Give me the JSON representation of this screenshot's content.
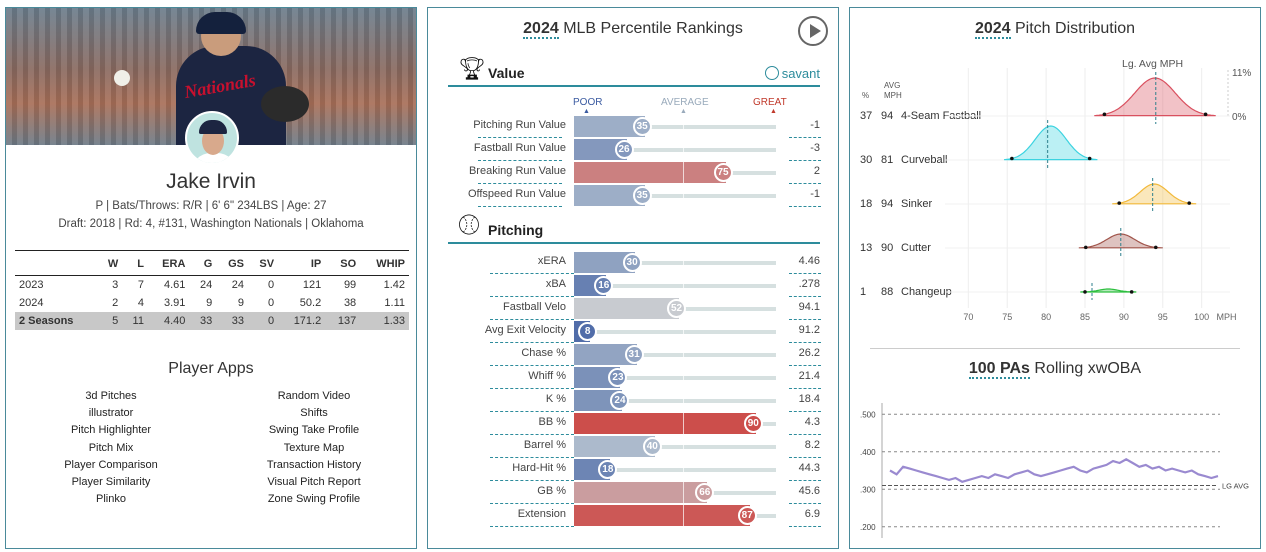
{
  "player": {
    "name": "Jake Irvin",
    "bio_line": "P | Bats/Throws: R/R | 6' 6\" 234LBS | Age: 27",
    "draft_line": "Draft: 2018 | Rd: 4, #131, Washington Nationals | Oklahoma",
    "jersey_text": "Nationals"
  },
  "stats_table": {
    "headers": [
      "",
      "W",
      "L",
      "ERA",
      "G",
      "GS",
      "SV",
      "IP",
      "SO",
      "WHIP"
    ],
    "rows": [
      [
        "2023",
        "3",
        "7",
        "4.61",
        "24",
        "24",
        "0",
        "121",
        "99",
        "1.42"
      ],
      [
        "2024",
        "2",
        "4",
        "3.91",
        "9",
        "9",
        "0",
        "50.2",
        "38",
        "1.11"
      ],
      [
        "2 Seasons",
        "5",
        "11",
        "4.40",
        "33",
        "33",
        "0",
        "171.2",
        "137",
        "1.33"
      ]
    ]
  },
  "apps": {
    "title": "Player Apps",
    "left": [
      "3d Pitches",
      "illustrator",
      "Pitch Highlighter",
      "Pitch Mix",
      "Player Comparison",
      "Player Similarity",
      "Plinko"
    ],
    "right": [
      "Random Video",
      "Shifts",
      "Swing Take Profile",
      "Texture Map",
      "Transaction History",
      "Visual Pitch Report",
      "Zone Swing Profile"
    ]
  },
  "percentile": {
    "title_year": "2024",
    "title_rest": " MLB Percentile Rankings",
    "savant_label": "savant",
    "scale": {
      "poor": "POOR",
      "average": "AVERAGE",
      "great": "GREAT"
    },
    "value_section": "Value",
    "pitching_section": "Pitching",
    "value_rows": [
      {
        "label": "Pitching Run Value",
        "pct": 35,
        "value": "-1"
      },
      {
        "label": "Fastball Run Value",
        "pct": 26,
        "value": "-3"
      },
      {
        "label": "Breaking Run Value",
        "pct": 75,
        "value": "2"
      },
      {
        "label": "Offspeed Run Value",
        "pct": 35,
        "value": "-1"
      }
    ],
    "pitching_rows": [
      {
        "label": "xERA",
        "pct": 30,
        "value": "4.46"
      },
      {
        "label": "xBA",
        "pct": 16,
        "value": ".278"
      },
      {
        "label": "Fastball Velo",
        "pct": 52,
        "value": "94.1"
      },
      {
        "label": "Avg Exit Velocity",
        "pct": 8,
        "value": "91.2"
      },
      {
        "label": "Chase %",
        "pct": 31,
        "value": "26.2"
      },
      {
        "label": "Whiff %",
        "pct": 23,
        "value": "21.4"
      },
      {
        "label": "K %",
        "pct": 24,
        "value": "18.4"
      },
      {
        "label": "BB %",
        "pct": 90,
        "value": "4.3"
      },
      {
        "label": "Barrel %",
        "pct": 40,
        "value": "8.2"
      },
      {
        "label": "Hard-Hit %",
        "pct": 18,
        "value": "44.3"
      },
      {
        "label": "GB %",
        "pct": 66,
        "value": "45.6"
      },
      {
        "label": "Extension",
        "pct": 87,
        "value": "6.9"
      }
    ]
  },
  "distribution": {
    "title_year": "2024",
    "title_rest": " Pitch Distribution",
    "lg_avg_label": "Lg. Avg MPH",
    "pct_header": "%",
    "avg_header_1": "AVG",
    "avg_header_2": "MPH",
    "top_right_1": "11%",
    "top_right_2": "0%",
    "x_unit": "MPH",
    "x_ticks": [
      "70",
      "75",
      "80",
      "85",
      "90",
      "95",
      "100"
    ],
    "pitches": [
      {
        "pct": "37",
        "mph": "94",
        "name": "4-Seam Fastball",
        "color": "#d9505f",
        "avg": 94.0,
        "lg": 94.1
      },
      {
        "pct": "30",
        "mph": "81",
        "name": "Curveball",
        "color": "#3cd3e0",
        "avg": 80.6,
        "lg": 80.2
      },
      {
        "pct": "18",
        "mph": "94",
        "name": "Sinker",
        "color": "#f2b93b",
        "avg": 93.9,
        "lg": 93.7
      },
      {
        "pct": "13",
        "mph": "90",
        "name": "Cutter",
        "color": "#a0544a",
        "avg": 89.6,
        "lg": 89.6
      },
      {
        "pct": "1",
        "mph": "88",
        "name": "Changeup",
        "color": "#2dbf3f",
        "avg": 88.0,
        "lg": 85.9
      }
    ]
  },
  "rolling": {
    "title_bold": "100 PAs",
    "title_rest": " Rolling xwOBA",
    "lg_avg_label": "LG AVG",
    "y_ticks": [
      ".500",
      ".400",
      ".300",
      ".200"
    ]
  },
  "chart_data": [
    {
      "type": "bar",
      "title": "2024 MLB Percentile Rankings",
      "categories": [
        "Pitching Run Value",
        "Fastball Run Value",
        "Breaking Run Value",
        "Offspeed Run Value",
        "xERA",
        "xBA",
        "Fastball Velo",
        "Avg Exit Velocity",
        "Chase %",
        "Whiff %",
        "K %",
        "BB %",
        "Barrel %",
        "Hard-Hit %",
        "GB %",
        "Extension"
      ],
      "values": [
        35,
        26,
        75,
        35,
        30,
        16,
        52,
        8,
        31,
        23,
        24,
        90,
        40,
        18,
        66,
        87
      ],
      "ylim": [
        0,
        100
      ]
    },
    {
      "type": "area",
      "title": "2024 Pitch Distribution",
      "xlabel": "MPH",
      "xlim": [
        70,
        100
      ],
      "series": [
        {
          "name": "4-Seam Fastball",
          "values": [
            94
          ]
        },
        {
          "name": "Curveball",
          "values": [
            81
          ]
        },
        {
          "name": "Sinker",
          "values": [
            94
          ]
        },
        {
          "name": "Cutter",
          "values": [
            90
          ]
        },
        {
          "name": "Changeup",
          "values": [
            88
          ]
        }
      ]
    },
    {
      "type": "line",
      "title": "100 PAs Rolling xwOBA",
      "ylim": [
        0.17,
        0.53
      ],
      "lg_avg": 0.31,
      "series": [
        {
          "name": "xwOBA",
          "values": [
            0.35,
            0.34,
            0.36,
            0.355,
            0.35,
            0.345,
            0.34,
            0.335,
            0.33,
            0.325,
            0.33,
            0.32,
            0.325,
            0.33,
            0.335,
            0.33,
            0.34,
            0.335,
            0.33,
            0.34,
            0.345,
            0.35,
            0.34,
            0.335,
            0.34,
            0.345,
            0.35,
            0.355,
            0.36,
            0.35,
            0.345,
            0.355,
            0.36,
            0.365,
            0.375,
            0.37,
            0.38,
            0.37,
            0.36,
            0.365,
            0.355,
            0.36,
            0.35,
            0.355,
            0.35,
            0.345,
            0.35,
            0.34,
            0.335,
            0.33,
            0.335
          ]
        }
      ]
    }
  ]
}
